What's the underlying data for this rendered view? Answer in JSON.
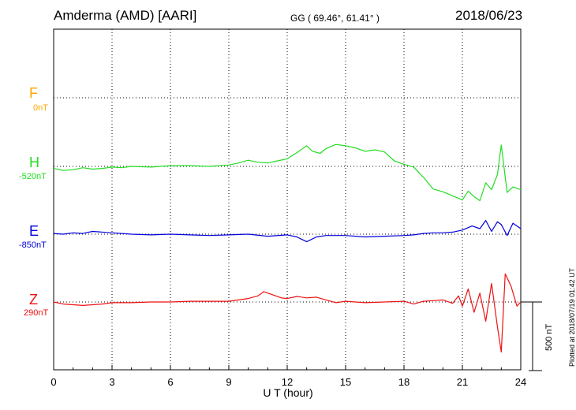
{
  "header": {
    "station": "Amderma (AMD)  [AARI]",
    "coords": "GG ( 69.46°,  61.41° )",
    "date": "2018/06/23"
  },
  "channels": [
    {
      "letter": "F",
      "baseline": "0nT",
      "color": "#FFA500"
    },
    {
      "letter": "H",
      "baseline": "-520nT",
      "color": "#22DD22"
    },
    {
      "letter": "E",
      "baseline": "-850nT",
      "color": "#0000DD"
    },
    {
      "letter": "Z",
      "baseline": "290nT",
      "color": "#EE1111"
    }
  ],
  "side_note": "Plotted at 2018/07/19 01:42 UT",
  "scale_label": "500 nT",
  "chart_data": {
    "type": "line",
    "xlabel": "U T (hour)",
    "xlim": [
      0,
      24
    ],
    "xticks": [
      0,
      3,
      6,
      9,
      12,
      15,
      18,
      21,
      24
    ],
    "scale_bar_nT": 500,
    "grid": true,
    "series": [
      {
        "name": "H",
        "color": "#22DD22",
        "baseline_nT": -520,
        "x": [
          0,
          0.5,
          1,
          1.5,
          2,
          2.5,
          3,
          3.5,
          4,
          5,
          6,
          7,
          8,
          9,
          9.5,
          10,
          10.5,
          11,
          11.5,
          12,
          12.5,
          13,
          13.3,
          13.7,
          14,
          14.5,
          15,
          15.5,
          16,
          16.5,
          17,
          17.5,
          18,
          18.5,
          19,
          19.5,
          20,
          20.5,
          21,
          21.3,
          21.6,
          21.9,
          22.2,
          22.5,
          22.8,
          23,
          23.3,
          23.6,
          24
        ],
        "y": [
          -15,
          -30,
          -25,
          -10,
          -20,
          -15,
          -5,
          -10,
          0,
          -5,
          5,
          5,
          0,
          10,
          25,
          45,
          30,
          25,
          40,
          55,
          100,
          150,
          110,
          95,
          130,
          160,
          150,
          135,
          110,
          120,
          105,
          40,
          15,
          -5,
          -80,
          -165,
          -185,
          -215,
          -245,
          -180,
          -220,
          -250,
          -120,
          -170,
          -60,
          155,
          -190,
          -150,
          -170
        ]
      },
      {
        "name": "E",
        "color": "#0000DD",
        "baseline_nT": -850,
        "x": [
          0,
          0.5,
          1,
          1.5,
          2,
          3,
          4,
          5,
          6,
          7,
          8,
          9,
          10,
          11,
          12,
          12.5,
          13,
          13.5,
          14,
          15,
          16,
          17,
          18,
          18.5,
          19,
          19.5,
          20,
          20.5,
          21,
          21.5,
          21.9,
          22.2,
          22.5,
          22.8,
          23,
          23.3,
          23.6,
          24
        ],
        "y": [
          5,
          0,
          10,
          5,
          20,
          10,
          0,
          -5,
          0,
          -5,
          -10,
          -5,
          0,
          -15,
          -5,
          -20,
          -55,
          -20,
          -10,
          -10,
          -20,
          -15,
          -10,
          -5,
          5,
          10,
          10,
          15,
          30,
          60,
          40,
          100,
          20,
          90,
          70,
          -10,
          80,
          40
        ]
      },
      {
        "name": "Z",
        "color": "#EE1111",
        "baseline_nT": 290,
        "x": [
          0,
          0.5,
          1,
          1.5,
          2,
          2.5,
          3,
          4,
          5,
          6,
          7,
          8,
          9,
          9.5,
          10,
          10.5,
          10.8,
          11.2,
          11.7,
          12,
          12.5,
          13,
          13.5,
          14,
          14.5,
          15,
          16,
          17,
          18,
          18.5,
          19,
          19.5,
          20,
          20.5,
          20.8,
          21,
          21.3,
          21.6,
          21.9,
          22.2,
          22.5,
          22.8,
          23,
          23.2,
          23.5,
          23.8,
          24
        ],
        "y": [
          0,
          -15,
          -20,
          -25,
          -20,
          -15,
          -5,
          -5,
          0,
          0,
          5,
          5,
          5,
          15,
          25,
          45,
          75,
          55,
          30,
          25,
          40,
          30,
          35,
          15,
          -5,
          5,
          -5,
          0,
          5,
          -15,
          5,
          10,
          15,
          -10,
          45,
          -30,
          95,
          -75,
          65,
          -140,
          135,
          -180,
          -365,
          205,
          115,
          -30,
          0
        ]
      }
    ]
  }
}
